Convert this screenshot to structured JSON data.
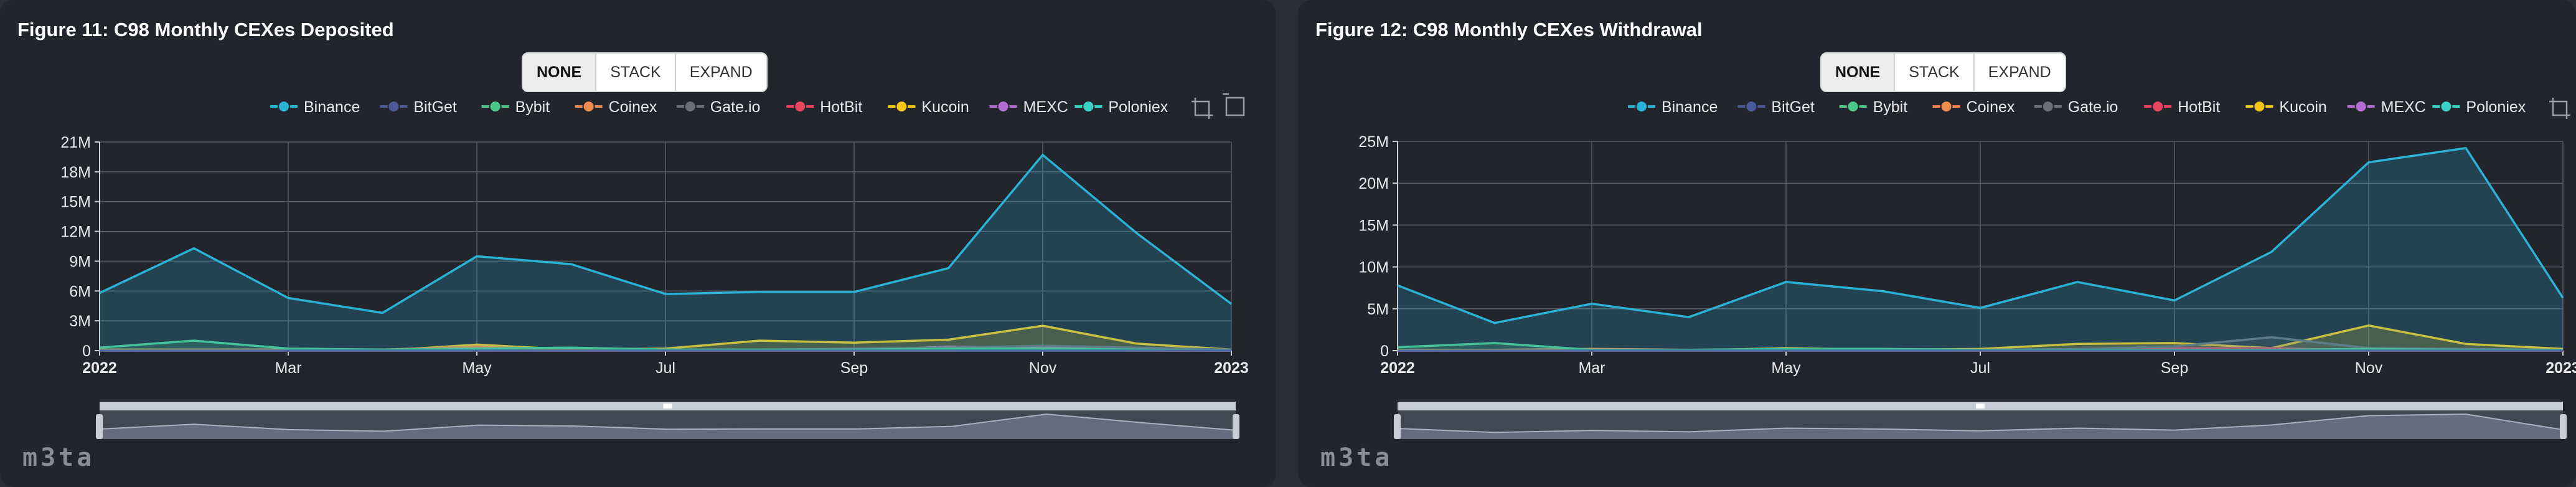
{
  "chart_data": [
    {
      "type": "area",
      "title": "Figure 11: C98 Monthly CEXes Deposited",
      "stack_modes": [
        "NONE",
        "STACK",
        "EXPAND"
      ],
      "active_mode": "NONE",
      "x_labels": [
        "2022",
        "Mar",
        "May",
        "Jul",
        "Sep",
        "Nov",
        "2023"
      ],
      "x": [
        "2022-01",
        "2022-02",
        "2022-03",
        "2022-04",
        "2022-05",
        "2022-06",
        "2022-07",
        "2022-08",
        "2022-09",
        "2022-10",
        "2022-11",
        "2022-12",
        "2023-01"
      ],
      "y_ticks": [
        "0",
        "3M",
        "6M",
        "9M",
        "12M",
        "15M",
        "18M",
        "21M"
      ],
      "ylim": [
        0,
        21000000
      ],
      "grid": true,
      "legend_position": "top-right",
      "series": [
        {
          "name": "Binance",
          "color": "#2ab3d6",
          "values": [
            5800000,
            10300000,
            5300000,
            3800000,
            9500000,
            8700000,
            5700000,
            5900000,
            5900000,
            8300000,
            19700000,
            11800000,
            4700000
          ]
        },
        {
          "name": "BitGet",
          "color": "#4c5a99",
          "values": [
            0,
            0,
            0,
            0,
            0,
            0,
            0,
            0,
            0,
            0,
            0,
            0,
            0
          ]
        },
        {
          "name": "Bybit",
          "color": "#4cc78a",
          "values": [
            300000,
            1000000,
            200000,
            100000,
            200000,
            300000,
            100000,
            100000,
            100000,
            200000,
            200000,
            100000,
            0
          ]
        },
        {
          "name": "Coinex",
          "color": "#f08c4b",
          "values": [
            0,
            100000,
            100000,
            100000,
            400000,
            100000,
            0,
            0,
            0,
            0,
            100000,
            0,
            0
          ]
        },
        {
          "name": "Gate.io",
          "color": "#6c6f73",
          "values": [
            0,
            0,
            0,
            0,
            100000,
            100000,
            100000,
            100000,
            200000,
            300000,
            500000,
            300000,
            100000
          ]
        },
        {
          "name": "HotBit",
          "color": "#e8455f",
          "values": [
            0,
            0,
            0,
            0,
            0,
            0,
            0,
            0,
            0,
            200000,
            200000,
            0,
            0
          ]
        },
        {
          "name": "Kucoin",
          "color": "#f5c518",
          "values": [
            100000,
            100000,
            100000,
            0,
            600000,
            100000,
            200000,
            1000000,
            800000,
            1100000,
            2500000,
            700000,
            100000
          ]
        },
        {
          "name": "MEXC",
          "color": "#b46cd1",
          "values": [
            0,
            0,
            0,
            0,
            0,
            0,
            0,
            0,
            0,
            400000,
            300000,
            100000,
            0
          ]
        },
        {
          "name": "Poloniex",
          "color": "#3bd1c7",
          "values": [
            0,
            0,
            0,
            0,
            0,
            0,
            0,
            0,
            0,
            0,
            0,
            0,
            0
          ]
        }
      ]
    },
    {
      "type": "area",
      "title": "Figure 12: C98 Monthly CEXes Withdrawal",
      "stack_modes": [
        "NONE",
        "STACK",
        "EXPAND"
      ],
      "active_mode": "NONE",
      "x_labels": [
        "2022",
        "Mar",
        "May",
        "Jul",
        "Sep",
        "Nov",
        "2023"
      ],
      "x": [
        "2022-01",
        "2022-02",
        "2022-03",
        "2022-04",
        "2022-05",
        "2022-06",
        "2022-07",
        "2022-08",
        "2022-09",
        "2022-10",
        "2022-11",
        "2022-12",
        "2023-01"
      ],
      "y_ticks": [
        "0",
        "5M",
        "10M",
        "15M",
        "20M",
        "25M"
      ],
      "ylim": [
        0,
        25000000
      ],
      "grid": true,
      "legend_position": "top-right",
      "series": [
        {
          "name": "Binance",
          "color": "#2ab3d6",
          "values": [
            7800000,
            3300000,
            5600000,
            4000000,
            8200000,
            7100000,
            5100000,
            8200000,
            6000000,
            11800000,
            22500000,
            24200000,
            6300000
          ]
        },
        {
          "name": "BitGet",
          "color": "#4c5a99",
          "values": [
            0,
            0,
            0,
            0,
            0,
            0,
            0,
            0,
            0,
            0,
            0,
            0,
            0
          ]
        },
        {
          "name": "Bybit",
          "color": "#4cc78a",
          "values": [
            400000,
            900000,
            100000,
            100000,
            200000,
            200000,
            100000,
            100000,
            100000,
            100000,
            200000,
            100000,
            100000
          ]
        },
        {
          "name": "Coinex",
          "color": "#f08c4b",
          "values": [
            0,
            100000,
            200000,
            100000,
            200000,
            100000,
            0,
            0,
            0,
            0,
            0,
            0,
            0
          ]
        },
        {
          "name": "Gate.io",
          "color": "#6c6f73",
          "values": [
            0,
            0,
            0,
            0,
            100000,
            100000,
            100000,
            200000,
            500000,
            1600000,
            300000,
            200000,
            100000
          ]
        },
        {
          "name": "HotBit",
          "color": "#e8455f",
          "values": [
            0,
            0,
            0,
            0,
            0,
            0,
            0,
            0,
            300000,
            300000,
            0,
            0,
            0
          ]
        },
        {
          "name": "Kucoin",
          "color": "#f5c518",
          "values": [
            100000,
            100000,
            100000,
            0,
            300000,
            100000,
            200000,
            800000,
            900000,
            300000,
            3000000,
            800000,
            200000
          ]
        },
        {
          "name": "MEXC",
          "color": "#b46cd1",
          "values": [
            0,
            0,
            0,
            0,
            0,
            0,
            0,
            0,
            0,
            0,
            0,
            0,
            0
          ]
        },
        {
          "name": "Poloniex",
          "color": "#3bd1c7",
          "values": [
            0,
            0,
            0,
            0,
            0,
            0,
            0,
            0,
            0,
            0,
            0,
            0,
            0
          ]
        }
      ]
    }
  ],
  "watermark": "m3ta"
}
